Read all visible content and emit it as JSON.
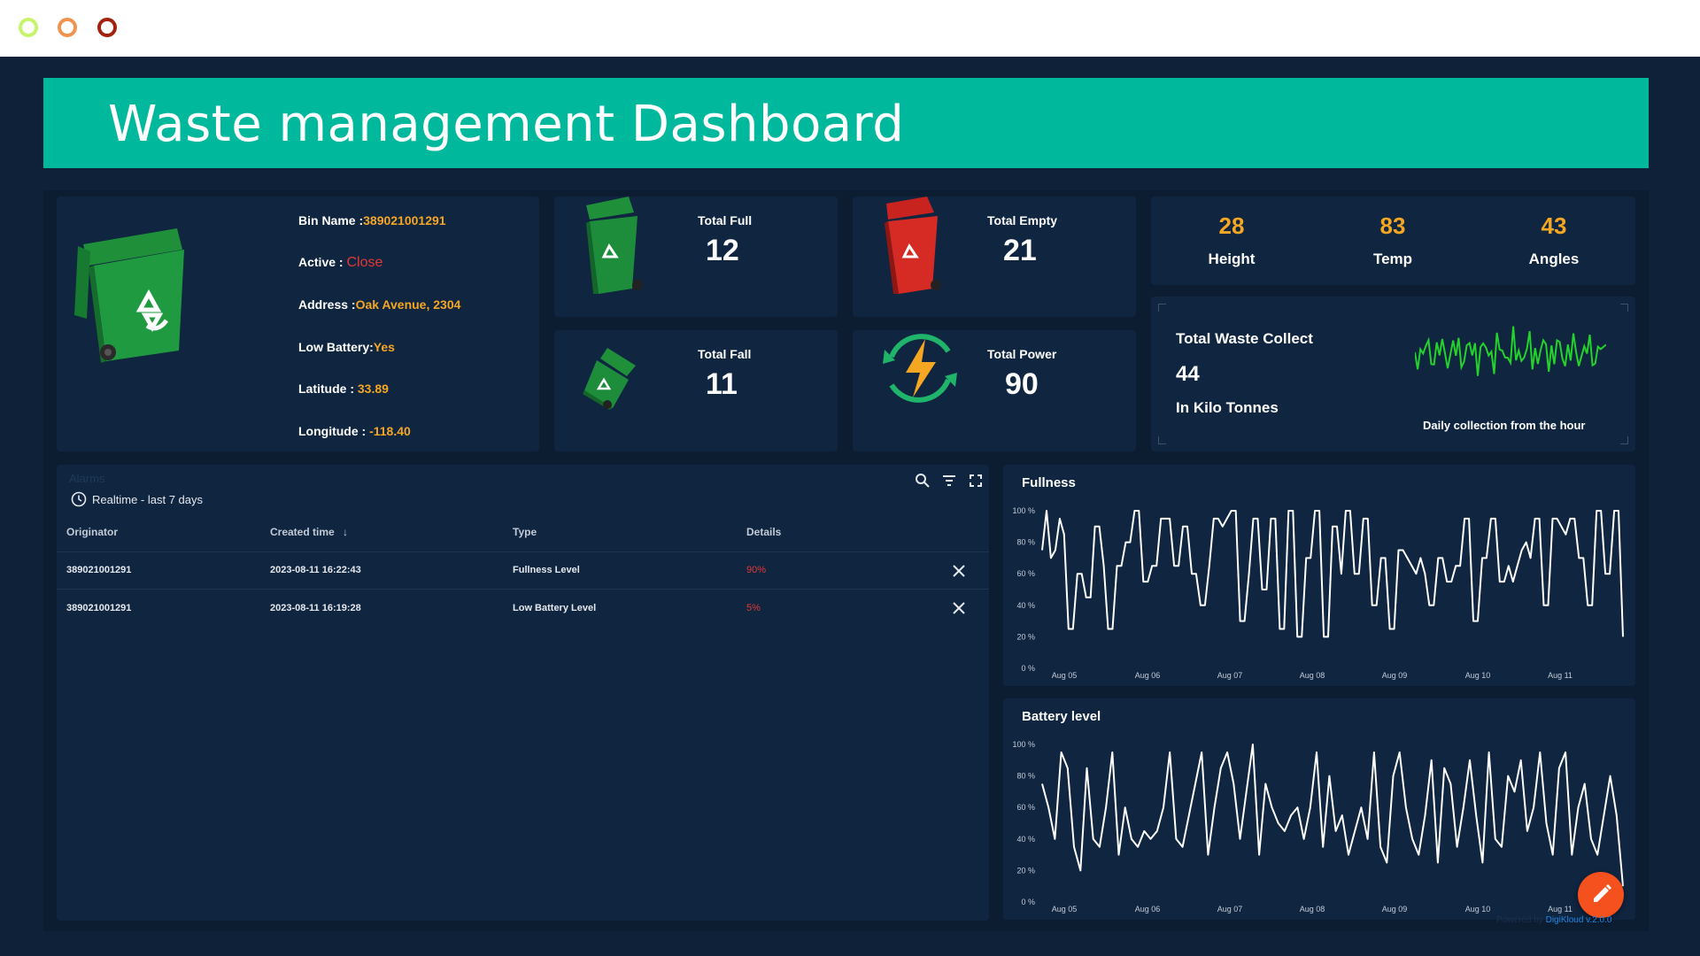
{
  "window": {
    "controls": [
      "control-green",
      "control-orange",
      "control-red"
    ]
  },
  "header": {
    "title": "Waste management Dashboard"
  },
  "bin_info": {
    "rows": [
      {
        "label": "Bin Name :",
        "value": "389021001291"
      },
      {
        "label": "Active : ",
        "value": "Close"
      },
      {
        "label": "Address :",
        "value": "Oak Avenue, 2304"
      },
      {
        "label": "Low Battery:",
        "value": "Yes"
      },
      {
        "label": "Latitude : ",
        "value": "33.89"
      },
      {
        "label": "Longitude : ",
        "value": "-118.40"
      }
    ]
  },
  "stats": {
    "total_full": {
      "label": "Total Full",
      "value": "12"
    },
    "total_empty": {
      "label": "Total Empty",
      "value": "21"
    },
    "total_fall": {
      "label": "Total Fall",
      "value": "11"
    },
    "total_power": {
      "label": "Total Power",
      "value": "90"
    }
  },
  "metrics": [
    {
      "value": "28",
      "label": "Height"
    },
    {
      "value": "83",
      "label": "Temp"
    },
    {
      "value": "43",
      "label": "Angles"
    }
  ],
  "waste": {
    "title": "Total Waste Collect",
    "value": "44",
    "unit": "In Kilo Tonnes",
    "caption": "Daily collection from the hour",
    "sparkline_color": "#22d32a"
  },
  "alarms": {
    "title": "Alarms",
    "timewindow": "Realtime - last 7 days",
    "columns": [
      "Originator",
      "Created time",
      "Type",
      "Details"
    ],
    "rows": [
      {
        "originator": "389021001291",
        "created": "2023-08-11 16:22:43",
        "type": "Fullness Level",
        "details": "90%"
      },
      {
        "originator": "389021001291",
        "created": "2023-08-11 16:19:28",
        "type": "Low Battery Level",
        "details": "5%"
      }
    ]
  },
  "chart_data": [
    {
      "type": "line",
      "title": "Fullness",
      "ylim": [
        0,
        100
      ],
      "y_ticks": [
        "100 %",
        "80 %",
        "60 %",
        "40 %",
        "20 %",
        "0 %"
      ],
      "x_ticks": [
        "Aug 05",
        "Aug 06",
        "Aug 07",
        "Aug 08",
        "Aug 09",
        "Aug 10",
        "Aug 11"
      ],
      "grid": false,
      "step": true,
      "values": [
        75,
        100,
        70,
        75,
        95,
        85,
        25,
        25,
        60,
        60,
        45,
        45,
        90,
        90,
        65,
        25,
        25,
        65,
        65,
        80,
        80,
        100,
        100,
        55,
        55,
        65,
        65,
        95,
        95,
        95,
        65,
        65,
        90,
        90,
        60,
        60,
        40,
        40,
        65,
        95,
        95,
        90,
        95,
        100,
        100,
        30,
        30,
        60,
        95,
        95,
        50,
        50,
        95,
        95,
        25,
        25,
        100,
        100,
        20,
        20,
        70,
        70,
        100,
        100,
        20,
        20,
        90,
        90,
        60,
        100,
        100,
        60,
        60,
        95,
        95,
        40,
        40,
        70,
        70,
        25,
        25,
        75,
        75,
        70,
        65,
        60,
        70,
        60,
        40,
        40,
        70,
        70,
        55,
        55,
        65,
        65,
        95,
        95,
        30,
        30,
        70,
        70,
        95,
        95,
        55,
        55,
        65,
        55,
        65,
        75,
        80,
        70,
        95,
        95,
        40,
        40,
        95,
        95,
        90,
        85,
        95,
        95,
        70,
        70,
        40,
        40,
        100,
        100,
        60,
        60,
        100,
        100,
        20
      ],
      "line_color": "#ffffff"
    },
    {
      "type": "line",
      "title": "Battery level",
      "ylim": [
        0,
        100
      ],
      "y_ticks": [
        "100 %",
        "80 %",
        "60 %",
        "40 %",
        "20 %",
        "0 %"
      ],
      "x_ticks": [
        "Aug 05",
        "Aug 06",
        "Aug 07",
        "Aug 08",
        "Aug 09",
        "Aug 10",
        "Aug 11"
      ],
      "grid": false,
      "step": false,
      "values": [
        75,
        60,
        40,
        95,
        85,
        35,
        20,
        85,
        40,
        35,
        60,
        95,
        30,
        60,
        40,
        35,
        45,
        40,
        45,
        60,
        95,
        40,
        35,
        55,
        75,
        95,
        30,
        60,
        85,
        95,
        75,
        40,
        70,
        100,
        30,
        75,
        60,
        50,
        45,
        55,
        60,
        40,
        60,
        95,
        35,
        80,
        45,
        55,
        30,
        45,
        60,
        40,
        95,
        35,
        25,
        80,
        95,
        60,
        40,
        30,
        55,
        90,
        25,
        85,
        75,
        35,
        60,
        90,
        55,
        25,
        95,
        40,
        35,
        80,
        70,
        90,
        45,
        60,
        95,
        50,
        30,
        85,
        95,
        30,
        60,
        75,
        40,
        30,
        55,
        80,
        55,
        10
      ],
      "line_color": "#ffffff"
    }
  ],
  "footer": {
    "powered_label": "Powered by ",
    "powered_brand": "DigiKloud v.2.0.0"
  },
  "colors": {
    "banner": "#00b89c",
    "accent_value": "#f5a623",
    "alert": "#e53935",
    "fab": "#f4511e"
  }
}
